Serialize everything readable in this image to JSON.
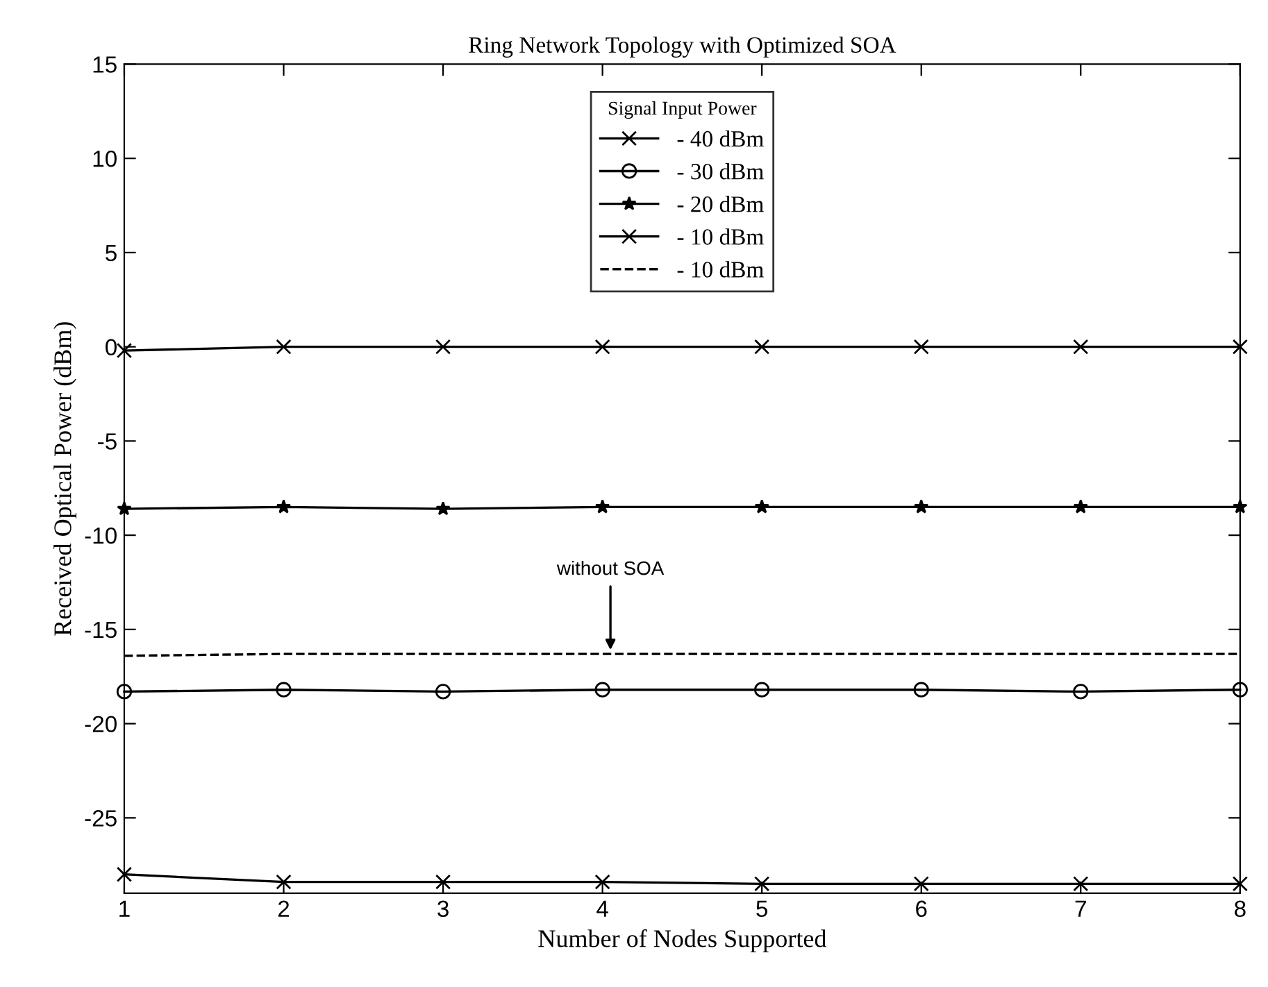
{
  "chart_data": {
    "type": "line",
    "title": "Ring Network Topology with Optimized SOA",
    "xlabel": "Number of Nodes Supported",
    "ylabel": "Received Optical Power (dBm)",
    "legend_title": "Signal Input Power",
    "x": [
      1,
      2,
      3,
      4,
      5,
      6,
      7,
      8
    ],
    "series": [
      {
        "name": "- 40 dBm",
        "color": "#000000",
        "marker": "cross",
        "line_style": "solid",
        "values": [
          -28.0,
          -28.4,
          -28.4,
          -28.4,
          -28.5,
          -28.5,
          -28.5,
          -28.5
        ]
      },
      {
        "name": "- 30 dBm",
        "color": "#000000",
        "marker": "circle",
        "line_style": "solid",
        "values": [
          -18.3,
          -18.2,
          -18.3,
          -18.2,
          -18.2,
          -18.2,
          -18.3,
          -18.2
        ]
      },
      {
        "name": "- 20 dBm",
        "color": "#000000",
        "marker": "star",
        "line_style": "solid",
        "values": [
          -8.6,
          -8.5,
          -8.6,
          -8.5,
          -8.5,
          -8.5,
          -8.5,
          -8.5
        ]
      },
      {
        "name": "- 10 dBm",
        "color": "#000000",
        "marker": "cross",
        "line_style": "solid",
        "values": [
          -0.2,
          0,
          0,
          0,
          0,
          0,
          0,
          0
        ]
      },
      {
        "name": "- 10 dBm",
        "color": "#000000",
        "marker": "none",
        "line_style": "dashed",
        "values": [
          -16.4,
          -16.3,
          -16.3,
          -16.3,
          -16.3,
          -16.3,
          -16.3,
          -16.3
        ]
      }
    ],
    "annotations": [
      {
        "text": "without SOA",
        "x": 4.05,
        "y": -16.3
      }
    ],
    "xlim": [
      1,
      8
    ],
    "xticks": [
      1,
      2,
      3,
      4,
      5,
      6,
      7,
      8
    ],
    "ylim": [
      -29,
      15
    ],
    "yticks": [
      -25,
      -20,
      -15,
      -10,
      -5,
      0,
      5,
      10,
      15
    ],
    "grid": false,
    "legend": "top"
  }
}
